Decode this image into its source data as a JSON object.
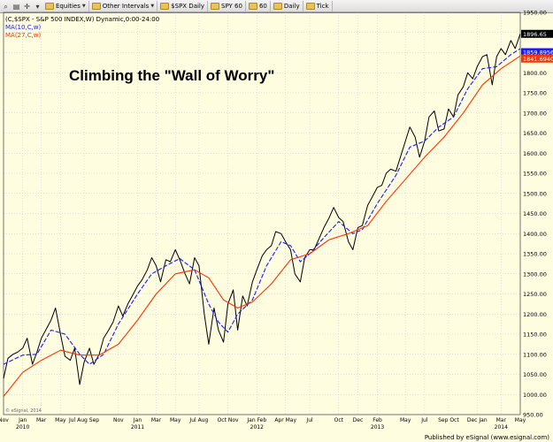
{
  "toolbar": {
    "items": [
      "Equities",
      "Other Intervals",
      "$SPX Daily",
      "SPY 60",
      "60",
      "Daily",
      "Tick"
    ]
  },
  "legend": {
    "symbol_line": "(C,$SPX - S&P 500 INDEX,W) Dynamic,0:00-24:00",
    "ma10_label": "MA(10,C,w)",
    "ma27_label": "MA(27,C,w)"
  },
  "watermark": "© eSignal, 2014",
  "publisher": "Published by eSignal (www.esignal.com)",
  "colors": {
    "background": "#fffde0",
    "price": "#000000",
    "ma10": "#1a1aff",
    "ma27": "#ff3300",
    "grid": "#c8c8c8"
  },
  "chart_data": {
    "type": "line",
    "title": "Climbing the \"Wall of Worry\"",
    "xlabel": "",
    "ylabel": "",
    "ylim": [
      950,
      1950
    ],
    "yticks": [
      950,
      1000,
      1050,
      1100,
      1150,
      1200,
      1250,
      1300,
      1350,
      1400,
      1450,
      1500,
      1550,
      1600,
      1650,
      1700,
      1750,
      1800,
      1850,
      1900,
      1950
    ],
    "ytick_labels": [
      "950.00",
      "1000.00",
      "1050.00",
      "1100.00",
      "1150.00",
      "1200.00",
      "1250.00",
      "1300.00",
      "1350.00",
      "1400.00",
      "1450.00",
      "1500.00",
      "1550.00",
      "1600.00",
      "1650.00",
      "1700.00",
      "1750.00",
      "1800.00",
      "1850.00",
      "1900.00",
      "1950.00"
    ],
    "xlim": [
      "2009-11-01",
      "2014-05-01"
    ],
    "xticks": [
      {
        "date": "2009-11-01",
        "label": "Nov"
      },
      {
        "date": "2010-01-01",
        "label": "Jan",
        "year": "2010"
      },
      {
        "date": "2010-03-01",
        "label": "Mar"
      },
      {
        "date": "2010-05-01",
        "label": "May"
      },
      {
        "date": "2010-07-15",
        "label": "Jul Aug Sep"
      },
      {
        "date": "2010-11-01",
        "label": "Nov"
      },
      {
        "date": "2011-01-01",
        "label": "Jan",
        "year": "2011"
      },
      {
        "date": "2011-03-01",
        "label": "Mar"
      },
      {
        "date": "2011-05-01",
        "label": "May"
      },
      {
        "date": "2011-07-15",
        "label": "Jul Aug"
      },
      {
        "date": "2011-10-15",
        "label": "Oct Nov"
      },
      {
        "date": "2012-01-15",
        "label": "Jan Feb",
        "year": "2012"
      },
      {
        "date": "2012-04-15",
        "label": "Apr May"
      },
      {
        "date": "2012-07-01",
        "label": "Jul"
      },
      {
        "date": "2012-10-01",
        "label": "Oct"
      },
      {
        "date": "2012-12-01",
        "label": "Dec"
      },
      {
        "date": "2013-02-01",
        "label": "Feb",
        "year": "2013"
      },
      {
        "date": "2013-05-01",
        "label": "May"
      },
      {
        "date": "2013-07-01",
        "label": "Jul"
      },
      {
        "date": "2013-09-15",
        "label": "Sep Oct"
      },
      {
        "date": "2013-12-15",
        "label": "Dec Jan"
      },
      {
        "date": "2014-03-01",
        "label": "Mar",
        "year": "2014"
      },
      {
        "date": "2014-05-01",
        "label": "May"
      }
    ],
    "grid": true,
    "value_badges": [
      {
        "value": 1896.65,
        "label": "1896.65",
        "series": "price"
      },
      {
        "value": 1859.89562,
        "label": "1859.89562",
        "series": "ma10"
      },
      {
        "value": 1841.69402,
        "label": "1841.69402",
        "series": "ma27"
      }
    ],
    "series": [
      {
        "name": "(C,$SPX - S&P 500 INDEX,W) Dynamic,0:00-24:00",
        "points": [
          [
            "2009-11-01",
            1040
          ],
          [
            "2009-11-15",
            1090
          ],
          [
            "2009-12-01",
            1100
          ],
          [
            "2009-12-15",
            1105
          ],
          [
            "2010-01-01",
            1115
          ],
          [
            "2010-01-15",
            1140
          ],
          [
            "2010-02-01",
            1075
          ],
          [
            "2010-02-15",
            1105
          ],
          [
            "2010-03-01",
            1140
          ],
          [
            "2010-03-15",
            1160
          ],
          [
            "2010-04-01",
            1185
          ],
          [
            "2010-04-15",
            1215
          ],
          [
            "2010-05-01",
            1150
          ],
          [
            "2010-05-15",
            1095
          ],
          [
            "2010-06-01",
            1085
          ],
          [
            "2010-06-15",
            1115
          ],
          [
            "2010-07-01",
            1025
          ],
          [
            "2010-07-15",
            1080
          ],
          [
            "2010-08-01",
            1115
          ],
          [
            "2010-08-15",
            1075
          ],
          [
            "2010-09-01",
            1100
          ],
          [
            "2010-09-15",
            1140
          ],
          [
            "2010-10-01",
            1160
          ],
          [
            "2010-10-15",
            1180
          ],
          [
            "2010-11-01",
            1220
          ],
          [
            "2010-11-15",
            1195
          ],
          [
            "2010-12-01",
            1225
          ],
          [
            "2010-12-15",
            1245
          ],
          [
            "2011-01-01",
            1270
          ],
          [
            "2011-01-15",
            1285
          ],
          [
            "2011-02-01",
            1310
          ],
          [
            "2011-02-15",
            1340
          ],
          [
            "2011-03-01",
            1320
          ],
          [
            "2011-03-15",
            1280
          ],
          [
            "2011-04-01",
            1335
          ],
          [
            "2011-04-15",
            1330
          ],
          [
            "2011-05-01",
            1360
          ],
          [
            "2011-05-15",
            1335
          ],
          [
            "2011-06-01",
            1300
          ],
          [
            "2011-06-15",
            1275
          ],
          [
            "2011-07-01",
            1340
          ],
          [
            "2011-07-15",
            1320
          ],
          [
            "2011-08-01",
            1200
          ],
          [
            "2011-08-15",
            1125
          ],
          [
            "2011-09-01",
            1215
          ],
          [
            "2011-09-15",
            1160
          ],
          [
            "2011-10-01",
            1130
          ],
          [
            "2011-10-15",
            1225
          ],
          [
            "2011-11-01",
            1260
          ],
          [
            "2011-11-15",
            1160
          ],
          [
            "2011-12-01",
            1245
          ],
          [
            "2011-12-15",
            1220
          ],
          [
            "2012-01-01",
            1280
          ],
          [
            "2012-01-15",
            1310
          ],
          [
            "2012-02-01",
            1345
          ],
          [
            "2012-02-15",
            1360
          ],
          [
            "2012-03-01",
            1370
          ],
          [
            "2012-03-15",
            1405
          ],
          [
            "2012-04-01",
            1400
          ],
          [
            "2012-04-15",
            1380
          ],
          [
            "2012-05-01",
            1360
          ],
          [
            "2012-05-15",
            1300
          ],
          [
            "2012-06-01",
            1280
          ],
          [
            "2012-06-15",
            1340
          ],
          [
            "2012-07-01",
            1360
          ],
          [
            "2012-07-15",
            1360
          ],
          [
            "2012-08-01",
            1390
          ],
          [
            "2012-08-15",
            1415
          ],
          [
            "2012-09-01",
            1440
          ],
          [
            "2012-09-15",
            1465
          ],
          [
            "2012-10-01",
            1440
          ],
          [
            "2012-10-15",
            1430
          ],
          [
            "2012-11-01",
            1380
          ],
          [
            "2012-11-15",
            1360
          ],
          [
            "2012-12-01",
            1415
          ],
          [
            "2012-12-15",
            1420
          ],
          [
            "2013-01-01",
            1470
          ],
          [
            "2013-01-15",
            1490
          ],
          [
            "2013-02-01",
            1515
          ],
          [
            "2013-02-15",
            1520
          ],
          [
            "2013-03-01",
            1550
          ],
          [
            "2013-03-15",
            1560
          ],
          [
            "2013-04-01",
            1555
          ],
          [
            "2013-04-15",
            1590
          ],
          [
            "2013-05-01",
            1630
          ],
          [
            "2013-05-15",
            1665
          ],
          [
            "2013-06-01",
            1640
          ],
          [
            "2013-06-15",
            1590
          ],
          [
            "2013-07-01",
            1630
          ],
          [
            "2013-07-15",
            1690
          ],
          [
            "2013-08-01",
            1705
          ],
          [
            "2013-08-15",
            1655
          ],
          [
            "2013-09-01",
            1660
          ],
          [
            "2013-09-15",
            1710
          ],
          [
            "2013-10-01",
            1690
          ],
          [
            "2013-10-15",
            1745
          ],
          [
            "2013-11-01",
            1765
          ],
          [
            "2013-11-15",
            1800
          ],
          [
            "2013-12-01",
            1785
          ],
          [
            "2013-12-15",
            1815
          ],
          [
            "2014-01-01",
            1840
          ],
          [
            "2014-01-15",
            1845
          ],
          [
            "2014-02-01",
            1770
          ],
          [
            "2014-02-15",
            1840
          ],
          [
            "2014-03-01",
            1860
          ],
          [
            "2014-03-15",
            1845
          ],
          [
            "2014-04-01",
            1880
          ],
          [
            "2014-04-15",
            1860
          ],
          [
            "2014-05-01",
            1896.65
          ]
        ]
      },
      {
        "name": "MA(10,C,w)",
        "points": [
          [
            "2009-11-01",
            1075
          ],
          [
            "2010-01-01",
            1098
          ],
          [
            "2010-02-15",
            1100
          ],
          [
            "2010-04-01",
            1160
          ],
          [
            "2010-05-15",
            1150
          ],
          [
            "2010-07-01",
            1100
          ],
          [
            "2010-08-01",
            1075
          ],
          [
            "2010-09-15",
            1100
          ],
          [
            "2010-11-01",
            1175
          ],
          [
            "2011-01-01",
            1250
          ],
          [
            "2011-02-15",
            1300
          ],
          [
            "2011-04-01",
            1320
          ],
          [
            "2011-05-15",
            1338
          ],
          [
            "2011-07-01",
            1310
          ],
          [
            "2011-08-15",
            1225
          ],
          [
            "2011-09-15",
            1180
          ],
          [
            "2011-10-15",
            1155
          ],
          [
            "2011-11-15",
            1200
          ],
          [
            "2012-01-01",
            1235
          ],
          [
            "2012-02-15",
            1320
          ],
          [
            "2012-04-01",
            1380
          ],
          [
            "2012-05-01",
            1370
          ],
          [
            "2012-06-01",
            1330
          ],
          [
            "2012-07-01",
            1350
          ],
          [
            "2012-08-15",
            1390
          ],
          [
            "2012-10-01",
            1430
          ],
          [
            "2012-11-15",
            1400
          ],
          [
            "2012-12-15",
            1410
          ],
          [
            "2013-02-01",
            1475
          ],
          [
            "2013-04-01",
            1545
          ],
          [
            "2013-05-15",
            1615
          ],
          [
            "2013-07-01",
            1630
          ],
          [
            "2013-08-15",
            1665
          ],
          [
            "2013-10-01",
            1690
          ],
          [
            "2013-11-15",
            1760
          ],
          [
            "2014-01-01",
            1810
          ],
          [
            "2014-02-15",
            1815
          ],
          [
            "2014-04-01",
            1845
          ],
          [
            "2014-05-01",
            1859.89562
          ]
        ]
      },
      {
        "name": "MA(27,C,w)",
        "points": [
          [
            "2009-11-01",
            995
          ],
          [
            "2010-01-01",
            1055
          ],
          [
            "2010-03-01",
            1085
          ],
          [
            "2010-05-01",
            1110
          ],
          [
            "2010-07-01",
            1098
          ],
          [
            "2010-09-01",
            1098
          ],
          [
            "2010-11-01",
            1125
          ],
          [
            "2011-01-01",
            1185
          ],
          [
            "2011-03-01",
            1250
          ],
          [
            "2011-05-01",
            1300
          ],
          [
            "2011-07-01",
            1310
          ],
          [
            "2011-08-15",
            1290
          ],
          [
            "2011-10-01",
            1235
          ],
          [
            "2011-11-15",
            1215
          ],
          [
            "2012-01-01",
            1230
          ],
          [
            "2012-03-01",
            1275
          ],
          [
            "2012-05-01",
            1335
          ],
          [
            "2012-07-01",
            1350
          ],
          [
            "2012-09-01",
            1385
          ],
          [
            "2012-11-01",
            1400
          ],
          [
            "2013-01-01",
            1420
          ],
          [
            "2013-03-01",
            1480
          ],
          [
            "2013-05-01",
            1535
          ],
          [
            "2013-07-01",
            1590
          ],
          [
            "2013-09-01",
            1640
          ],
          [
            "2013-11-01",
            1700
          ],
          [
            "2014-01-01",
            1770
          ],
          [
            "2014-03-01",
            1810
          ],
          [
            "2014-05-01",
            1841.69402
          ]
        ]
      }
    ]
  }
}
